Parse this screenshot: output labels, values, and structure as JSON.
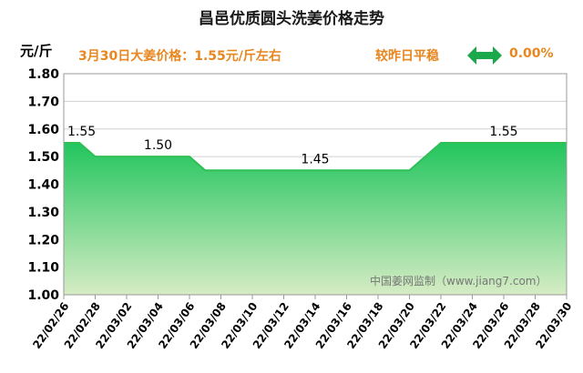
{
  "chart_data": {
    "type": "area",
    "title": "昌邑优质圆头洗姜价格走势",
    "unit_label": "元/斤",
    "headline": "3月30日大姜价格：1.55元/斤左右",
    "trend_label": "较昨日平稳",
    "change_value": "0.00%",
    "watermark": "中国姜网监制（www.jiang7.com）",
    "ylim": [
      1.0,
      1.8
    ],
    "y_ticks": [
      "1.00",
      "1.10",
      "1.20",
      "1.30",
      "1.40",
      "1.50",
      "1.60",
      "1.70",
      "1.80"
    ],
    "x_tick_labels": [
      "22/02/26",
      "22/02/28",
      "22/03/02",
      "22/03/04",
      "22/03/06",
      "22/03/08",
      "22/03/10",
      "22/03/12",
      "22/03/14",
      "22/03/16",
      "22/03/18",
      "22/03/20",
      "22/03/22",
      "22/03/24",
      "22/03/26",
      "22/03/28",
      "22/03/30"
    ],
    "x_dates": [
      "22/02/26",
      "22/02/27",
      "22/02/28",
      "22/03/01",
      "22/03/02",
      "22/03/03",
      "22/03/04",
      "22/03/05",
      "22/03/06",
      "22/03/07",
      "22/03/08",
      "22/03/09",
      "22/03/10",
      "22/03/11",
      "22/03/12",
      "22/03/13",
      "22/03/14",
      "22/03/15",
      "22/03/16",
      "22/03/17",
      "22/03/18",
      "22/03/19",
      "22/03/20",
      "22/03/21",
      "22/03/22",
      "22/03/23",
      "22/03/24",
      "22/03/25",
      "22/03/26",
      "22/03/27",
      "22/03/28",
      "22/03/29",
      "22/03/30"
    ],
    "values": [
      1.55,
      1.55,
      1.5,
      1.5,
      1.5,
      1.5,
      1.5,
      1.5,
      1.5,
      1.45,
      1.45,
      1.45,
      1.45,
      1.45,
      1.45,
      1.45,
      1.45,
      1.45,
      1.45,
      1.45,
      1.45,
      1.45,
      1.45,
      1.5,
      1.55,
      1.55,
      1.55,
      1.55,
      1.55,
      1.55,
      1.55,
      1.55,
      1.55
    ],
    "data_labels": [
      {
        "date": "22/02/26",
        "text": "1.55"
      },
      {
        "date": "22/03/04",
        "text": "1.50"
      },
      {
        "date": "22/03/14",
        "text": "1.45"
      },
      {
        "date": "22/03/26",
        "text": "1.55"
      }
    ],
    "grid": true,
    "colors": {
      "fill_top": "#22c55e",
      "fill_bottom": "#d6ecc4",
      "line": "#2fbf54",
      "text_accent": "#e8861f",
      "arrow": "#1aa84a"
    }
  }
}
